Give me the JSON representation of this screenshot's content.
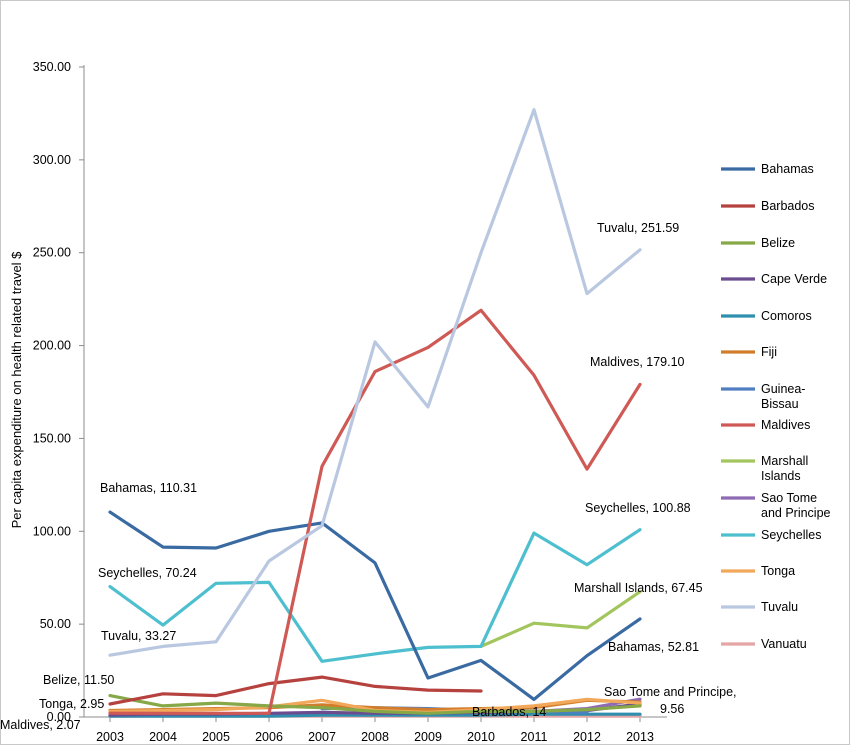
{
  "chart_data": {
    "type": "line",
    "title": "",
    "xlabel": "",
    "ylabel": "Per capita expenditure on health related travel $",
    "ylim": [
      0,
      350
    ],
    "y_ticks": [
      "0.00",
      "50.00",
      "100.00",
      "150.00",
      "200.00",
      "250.00",
      "300.00",
      "350.00"
    ],
    "x": [
      "2003",
      "2004",
      "2005",
      "2006",
      "2007",
      "2008",
      "2009",
      "2010",
      "2011",
      "2012",
      "2013"
    ],
    "grid": false,
    "legend_position": "right",
    "series": [
      {
        "name": "Bahamas",
        "color": "#3a6aa2",
        "values": [
          110.31,
          91.5,
          91.0,
          100.0,
          104.5,
          83.0,
          21.0,
          30.5,
          9.5,
          33.0,
          52.81
        ]
      },
      {
        "name": "Barbados",
        "color": "#b5423e",
        "values": [
          7.0,
          12.5,
          11.5,
          18.0,
          21.5,
          16.5,
          14.5,
          14.0,
          null,
          null,
          null
        ]
      },
      {
        "name": "Belize",
        "color": "#86a847",
        "values": [
          11.5,
          6.0,
          7.5,
          6.0,
          5.0,
          3.0,
          2.0,
          3.0,
          3.0,
          4.0,
          6.0
        ]
      },
      {
        "name": "Cape Verde",
        "color": "#6b4c8f",
        "values": [
          1.0,
          1.5,
          1.5,
          2.0,
          2.5,
          2.0,
          2.0,
          2.5,
          3.0,
          3.5,
          7.0
        ]
      },
      {
        "name": "Comoros",
        "color": "#2f8fae",
        "values": [
          0.5,
          0.5,
          0.5,
          0.5,
          1.0,
          1.0,
          1.0,
          1.0,
          1.5,
          1.5,
          1.5
        ]
      },
      {
        "name": "Fiji",
        "color": "#d17d2b",
        "values": [
          3.5,
          4.0,
          4.5,
          5.0,
          6.5,
          5.0,
          4.0,
          4.5,
          5.0,
          9.0,
          8.0
        ]
      },
      {
        "name": "Guinea-Bissau",
        "color": "#4f7fc0",
        "values": [
          null,
          null,
          null,
          null,
          4.5,
          5.0,
          4.5,
          3.5,
          3.0,
          2.5,
          null
        ]
      },
      {
        "name": "Maldives",
        "color": "#cf5a55",
        "values": [
          2.07,
          2.0,
          2.0,
          2.0,
          135.0,
          186.0,
          199.0,
          219.0,
          184.0,
          133.5,
          179.1
        ]
      },
      {
        "name": "Marshall Islands",
        "color": "#a3c55d",
        "values": [
          null,
          null,
          null,
          null,
          null,
          null,
          null,
          38.0,
          50.5,
          48.0,
          67.45
        ]
      },
      {
        "name": "Sao Tome and Principe",
        "color": "#8f6bb3",
        "values": [
          null,
          null,
          null,
          null,
          null,
          null,
          null,
          null,
          3.0,
          4.5,
          9.56
        ]
      },
      {
        "name": "Seychelles",
        "color": "#4ebfcf",
        "values": [
          70.24,
          49.5,
          72.0,
          72.5,
          30.0,
          34.0,
          37.5,
          38.0,
          99.0,
          82.0,
          100.88
        ]
      },
      {
        "name": "Tonga",
        "color": "#f2a85a",
        "values": [
          2.95,
          3.5,
          4.0,
          5.5,
          9.0,
          3.5,
          2.5,
          4.0,
          6.0,
          9.5,
          7.5
        ]
      },
      {
        "name": "Tuvalu",
        "color": "#b9c8e0",
        "values": [
          33.27,
          38.0,
          40.5,
          84.0,
          103.0,
          202.0,
          167.0,
          250.0,
          327.0,
          228.0,
          251.59
        ]
      },
      {
        "name": "Vanuatu",
        "color": "#e5a5a5",
        "values": [
          0.5,
          0.5,
          0.5,
          0.5,
          0.5,
          0.5,
          0.5,
          0.5,
          0.5,
          0.5,
          0.5
        ]
      }
    ],
    "annotations": [
      {
        "text": "Bahamas, 110.31"
      },
      {
        "text": "Seychelles, 70.24"
      },
      {
        "text": "Tuvalu, 33.27"
      },
      {
        "text": "Belize, 11.50"
      },
      {
        "text": "Tonga, 2.95"
      },
      {
        "text": "Maldives, 2.07"
      },
      {
        "text": "Tuvalu, 251.59"
      },
      {
        "text": "Maldives, 179.10"
      },
      {
        "text": "Seychelles, 100.88"
      },
      {
        "text": "Marshall Islands, 67.45"
      },
      {
        "text": "Bahamas, 52.81"
      },
      {
        "text": "Barbados, 14"
      },
      {
        "text": "Sao Tome and Principe,"
      },
      {
        "text": "9.56"
      }
    ]
  }
}
